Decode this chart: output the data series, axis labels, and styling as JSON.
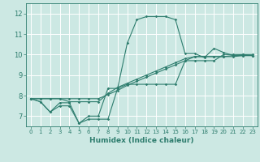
{
  "xlabel": "Humidex (Indice chaleur)",
  "xlim": [
    -0.5,
    23.5
  ],
  "ylim": [
    6.5,
    12.5
  ],
  "yticks": [
    7,
    8,
    9,
    10,
    11,
    12
  ],
  "xticks": [
    0,
    1,
    2,
    3,
    4,
    5,
    6,
    7,
    8,
    9,
    10,
    11,
    12,
    13,
    14,
    15,
    16,
    17,
    18,
    19,
    20,
    21,
    22,
    23
  ],
  "bg_color": "#cce8e3",
  "grid_color": "#ffffff",
  "line_color": "#2e7d6e",
  "series": [
    [
      7.85,
      7.7,
      7.2,
      7.65,
      7.65,
      6.65,
      6.85,
      6.85,
      6.85,
      8.35,
      10.55,
      11.7,
      11.85,
      11.85,
      11.85,
      11.7,
      10.05,
      10.05,
      9.85,
      10.3,
      10.1,
      9.95,
      10.0,
      9.95
    ],
    [
      7.85,
      7.7,
      7.2,
      7.5,
      7.5,
      6.65,
      7.0,
      7.0,
      8.35,
      8.35,
      8.55,
      8.55,
      8.55,
      8.55,
      8.55,
      8.55,
      9.7,
      9.7,
      9.7,
      9.7,
      10.0,
      10.0,
      10.0,
      10.0
    ],
    [
      7.85,
      7.85,
      7.85,
      7.85,
      7.85,
      7.85,
      7.85,
      7.85,
      8.05,
      8.25,
      8.5,
      8.7,
      8.9,
      9.1,
      9.3,
      9.5,
      9.7,
      9.9,
      9.9,
      9.9,
      9.9,
      9.9,
      9.95,
      9.95
    ],
    [
      7.85,
      7.85,
      7.85,
      7.85,
      7.7,
      7.7,
      7.7,
      7.7,
      8.1,
      8.4,
      8.6,
      8.8,
      9.0,
      9.2,
      9.4,
      9.6,
      9.8,
      9.9,
      9.9,
      9.9,
      9.9,
      9.95,
      9.95,
      9.95
    ]
  ]
}
